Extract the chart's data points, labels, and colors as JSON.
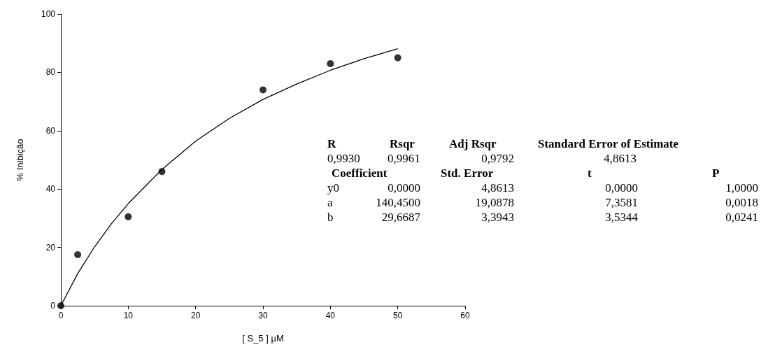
{
  "chart_data": {
    "type": "scatter",
    "xlabel": "[ S_5 ] µM",
    "ylabel": "% Inibição",
    "xlim": [
      0,
      60
    ],
    "xticks": [
      0,
      10,
      20,
      30,
      40,
      50,
      60
    ],
    "ylim": [
      0,
      100
    ],
    "yticks": [
      0,
      20,
      40,
      60,
      80,
      100
    ],
    "grid": false,
    "marker": "circle",
    "series": [
      {
        "color": "#000000",
        "x": [
          0,
          2.5,
          10,
          15,
          30,
          40,
          50
        ],
        "values": [
          0,
          17.5,
          30.5,
          46,
          74,
          83,
          85
        ]
      },
      {
        "type": "line",
        "color": "#000000",
        "line_style": "solid",
        "marker": "none",
        "x": [
          0,
          2.5,
          5,
          7.5,
          10,
          12.5,
          15,
          20,
          25,
          30,
          35,
          40,
          45,
          50
        ],
        "values": [
          0,
          11,
          20.2,
          28.1,
          35,
          40.9,
          46.7,
          56.4,
          64.2,
          70.7,
          76,
          80.7,
          84.7,
          88.1
        ]
      }
    ],
    "annotations": [
      "R",
      "Rsqr",
      "Adj Rsqr",
      "Standard Error of Estimate",
      "0,9930",
      "0,9961",
      "0,9792",
      "4,8613",
      "Coefficient",
      "Std. Error",
      "t",
      "P",
      "y0",
      "0,0000",
      "4,8613",
      "0,0000",
      "1,0000",
      "a",
      "140,4500",
      "19,0878",
      "7,3581",
      "0,0018",
      "b",
      "29,6687",
      "3,3943",
      "3,5344",
      "0,0241"
    ]
  }
}
